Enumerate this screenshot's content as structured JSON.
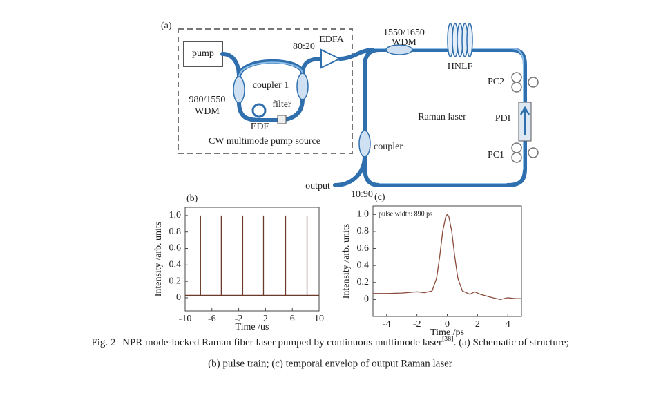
{
  "diagram": {
    "labels": [
      "(a)",
      "pump",
      "980/1550",
      "WDM",
      "coupler 1",
      "80:20",
      "EDFA",
      "1550/1650",
      "WDM",
      "HNLF",
      "PC2",
      "PDI",
      "PC1",
      "Raman laser",
      "filter",
      "EDF",
      "CW multimode pump source",
      "coupler",
      "output",
      "10:90"
    ]
  },
  "chart_data": [
    {
      "type": "line",
      "panel": "(b)",
      "x_label": "Time /us",
      "y_label": "Intensity /arb. units",
      "x": [
        -10,
        -7.7,
        -7.7,
        -7.7,
        -4.6,
        -4.6,
        -4.6,
        -1.4,
        -1.4,
        -1.4,
        1.7,
        1.7,
        1.7,
        5.0,
        5.0,
        5.0,
        8.2,
        8.2,
        8.2,
        10
      ],
      "series": [
        {
          "color": "#6b3a2a",
          "values": [
            0.03,
            0.03,
            1.0,
            0.03,
            0.03,
            1.0,
            0.03,
            0.03,
            1.0,
            0.03,
            0.03,
            1.0,
            0.03,
            0.03,
            1.0,
            0.03,
            0.03,
            1.0,
            0.03,
            0.03
          ]
        }
      ],
      "xlim": [
        -10,
        10
      ],
      "xticks": [
        -10,
        -6,
        -2,
        2,
        6,
        10
      ],
      "ylim": [
        -0.16,
        1.1
      ],
      "yticks": [
        0,
        0.2,
        0.4,
        0.6,
        0.8,
        {
          "value": 1,
          "label": "1.0"
        }
      ]
    },
    {
      "type": "line",
      "panel": "(c)",
      "x_label": "Time /ps",
      "y_label": "Intensity /arb. units",
      "annotation": "pulse width: 890 ps",
      "x": [
        -4.9,
        -4,
        -3,
        -2,
        -1.5,
        -1,
        -0.7,
        -0.5,
        -0.3,
        -0.1,
        0,
        0.1,
        0.3,
        0.5,
        0.7,
        1,
        1.5,
        1.8,
        2.2,
        3,
        3.5,
        4,
        4.5,
        4.9
      ],
      "series": [
        {
          "color": "#8a4a3a",
          "values": [
            0.07,
            0.07,
            0.075,
            0.09,
            0.08,
            0.1,
            0.25,
            0.5,
            0.8,
            0.97,
            1.0,
            0.98,
            0.8,
            0.5,
            0.25,
            0.1,
            0.06,
            0.09,
            0.06,
            0.02,
            0.0,
            0.02,
            0.01,
            0.01
          ]
        }
      ],
      "xlim": [
        -4.9,
        4.9
      ],
      "xticks": [
        -4,
        -2,
        0,
        2,
        4
      ],
      "ylim": [
        -0.2,
        1.1
      ],
      "yticks": [
        0,
        0.2,
        0.4,
        0.6,
        0.8,
        {
          "value": 1,
          "label": "1.0"
        }
      ]
    }
  ],
  "caption": {
    "label": "Fig. 2",
    "text": "NPR mode-locked Raman fiber laser pumped by continuous multimode laser",
    "ref": "[38]",
    "lines": [
      ". (a) Schematic of structure;",
      "(b) pulse train; (c) temporal envelop of output Raman laser"
    ]
  }
}
